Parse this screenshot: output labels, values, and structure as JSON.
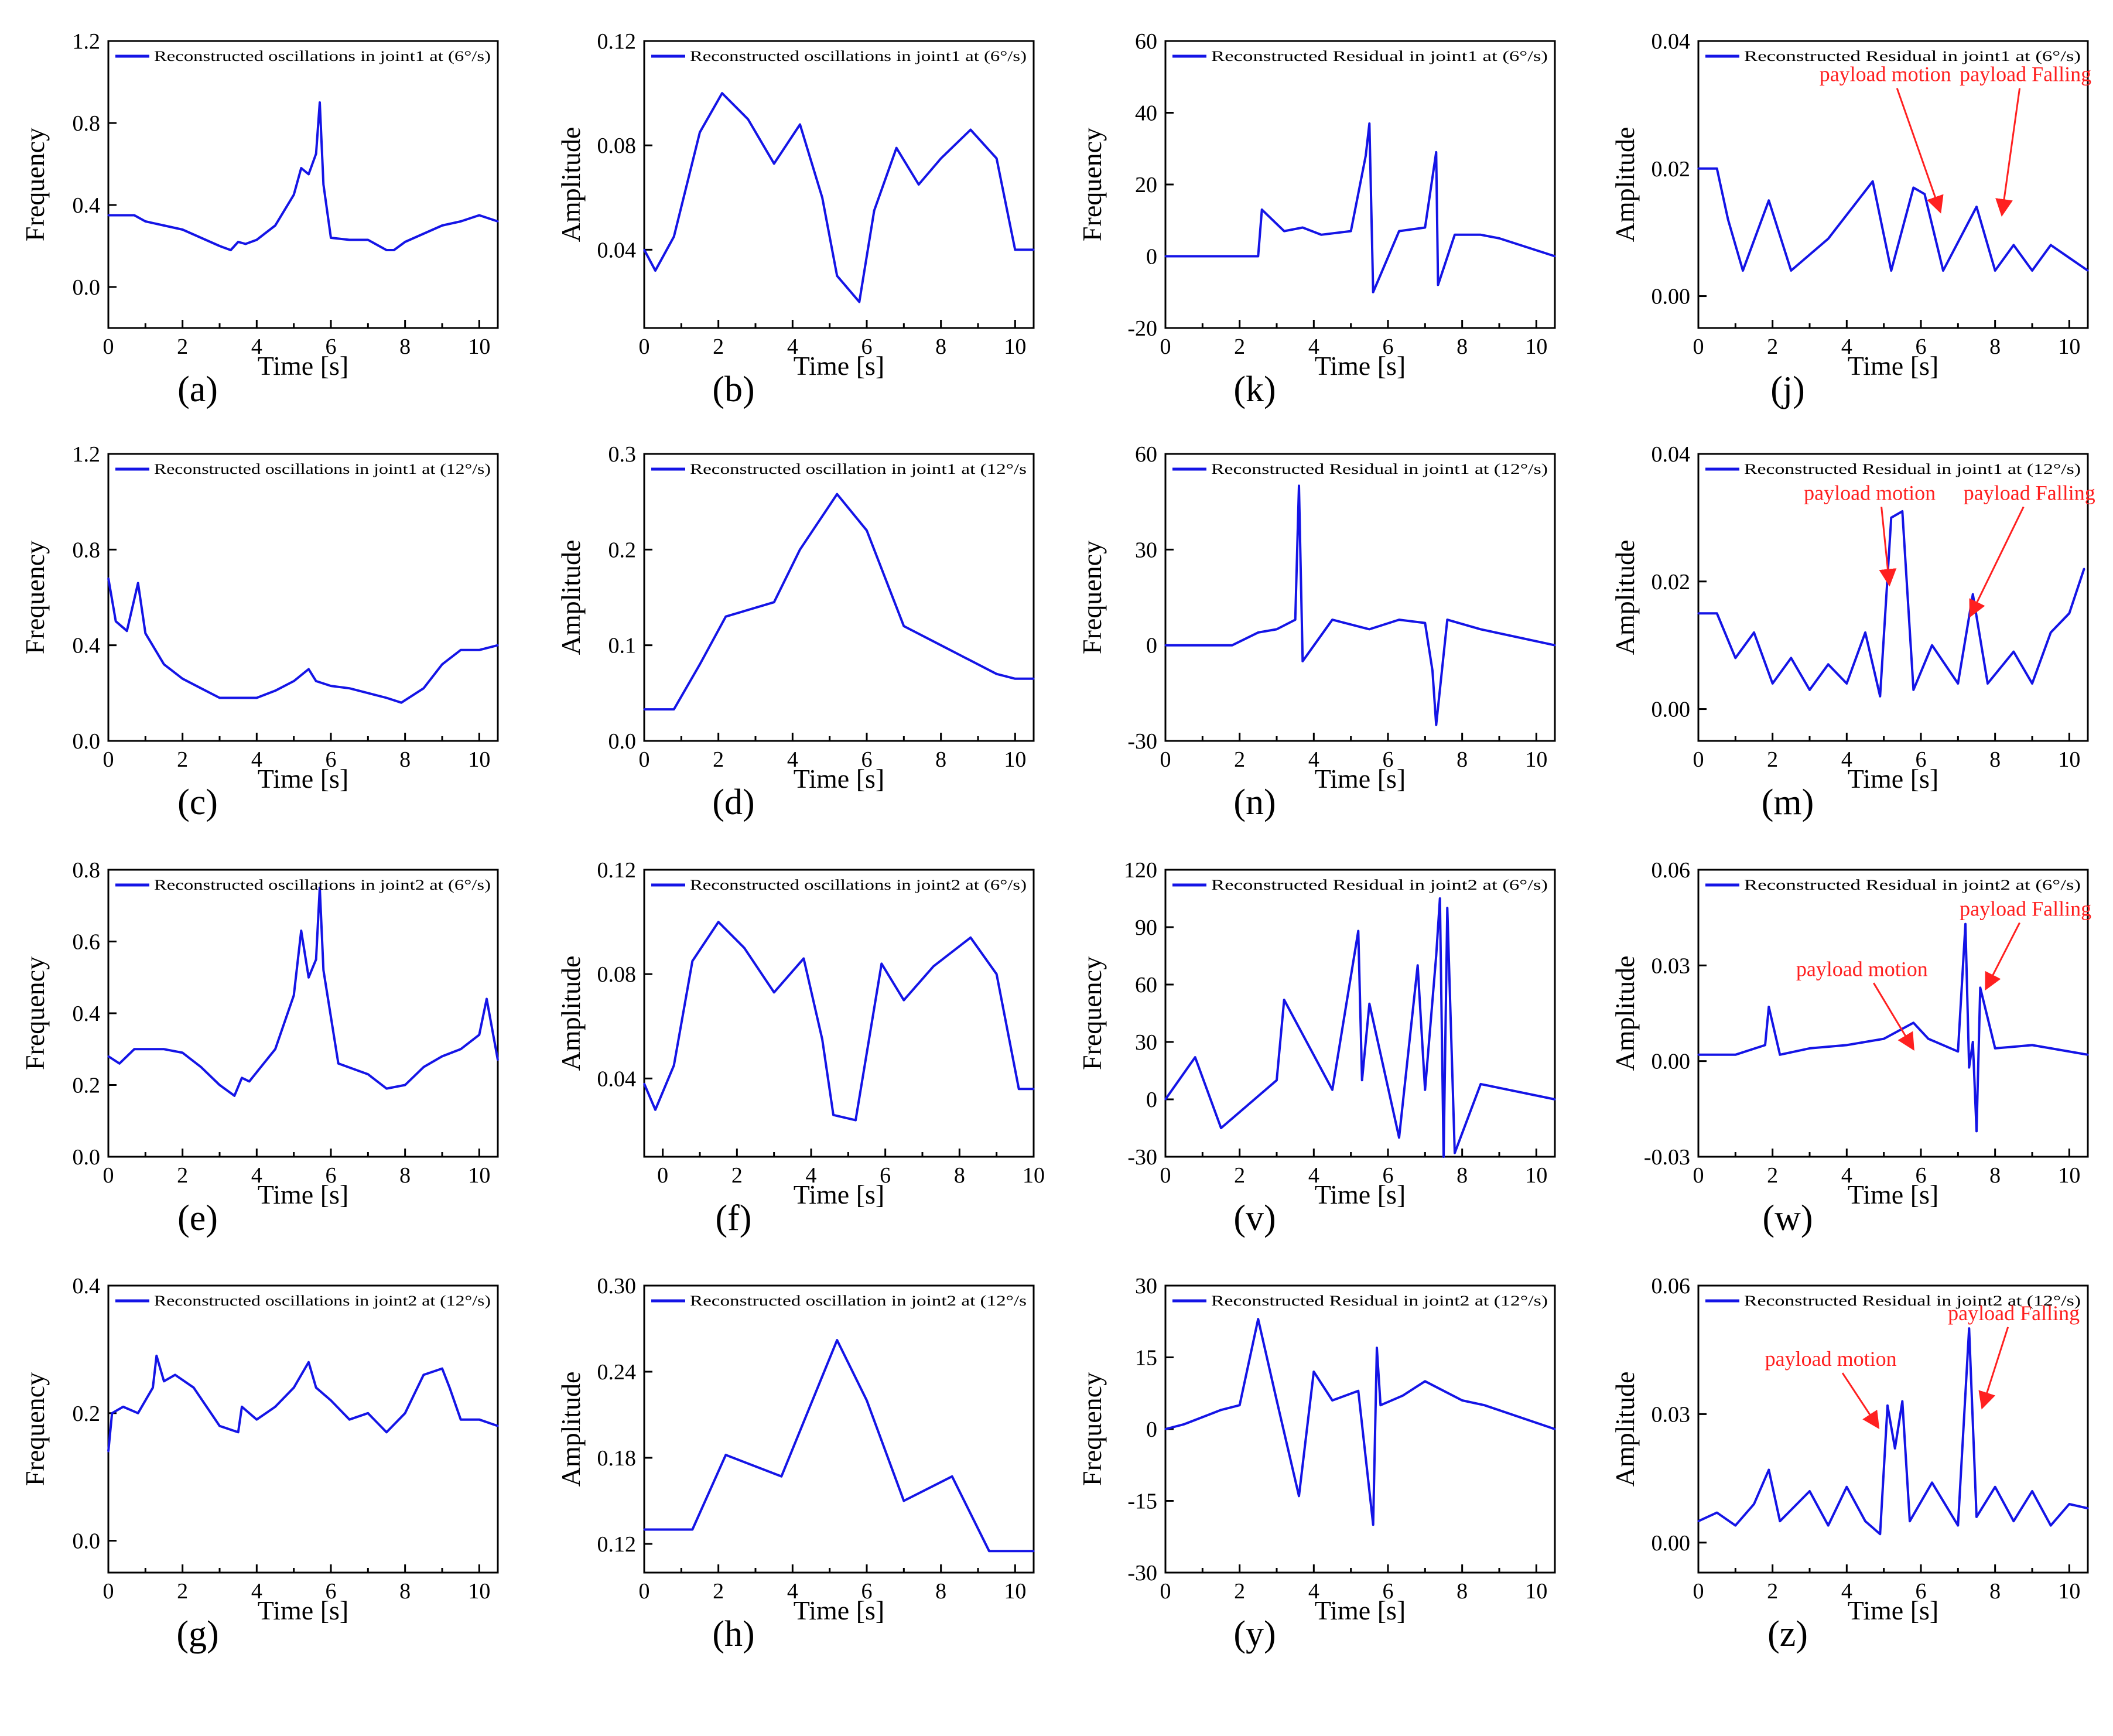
{
  "figure": {
    "series_color": "#1414e6",
    "annotation_color": "#ff2020"
  },
  "chart_data": [
    {
      "panel": "(a)",
      "type": "line",
      "title": "",
      "legend": "Reconstructed oscillations in joint1 at  (6°/s)",
      "xlabel": "Time [s]",
      "ylabel": "Frequency",
      "xlim": [
        0,
        10.5
      ],
      "ylim": [
        -0.2,
        1.2
      ],
      "xticks": [
        "0",
        "2",
        "4",
        "6",
        "8",
        "10"
      ],
      "yticks": [
        "0.0",
        "0.4",
        "0.8",
        "1.2"
      ],
      "x": [
        0,
        0.3,
        0.7,
        1,
        1.5,
        2,
        2.5,
        3,
        3.3,
        3.5,
        3.7,
        4,
        4.5,
        5,
        5.2,
        5.4,
        5.6,
        5.7,
        5.8,
        6,
        6.5,
        7,
        7.3,
        7.5,
        7.7,
        8,
        8.5,
        9,
        9.5,
        10,
        10.5
      ],
      "values": [
        0.35,
        0.35,
        0.35,
        0.32,
        0.3,
        0.28,
        0.24,
        0.2,
        0.18,
        0.22,
        0.21,
        0.23,
        0.3,
        0.45,
        0.58,
        0.55,
        0.65,
        0.9,
        0.5,
        0.24,
        0.23,
        0.23,
        0.2,
        0.18,
        0.18,
        0.22,
        0.26,
        0.3,
        0.32,
        0.35,
        0.32
      ],
      "annotations": []
    },
    {
      "panel": "(b)",
      "type": "line",
      "title": "",
      "legend": "Reconstructed oscillations in joint1 at  (6°/s)",
      "xlabel": "Time [s]",
      "ylabel": "Amplitude",
      "xlim": [
        0,
        10.5
      ],
      "ylim": [
        0.01,
        0.12
      ],
      "xticks": [
        "0",
        "2",
        "4",
        "6",
        "8",
        "10"
      ],
      "yticks": [
        "0.04",
        "0.08",
        "0.12"
      ],
      "x": [
        0,
        0.3,
        0.8,
        1.5,
        2.1,
        2.8,
        3.5,
        4.2,
        4.8,
        5.2,
        5.8,
        6.2,
        6.8,
        7.4,
        8,
        8.8,
        9.5,
        10,
        10.5
      ],
      "values": [
        0.04,
        0.032,
        0.045,
        0.085,
        0.1,
        0.09,
        0.073,
        0.088,
        0.06,
        0.03,
        0.02,
        0.055,
        0.079,
        0.065,
        0.075,
        0.086,
        0.075,
        0.04,
        0.04
      ],
      "annotations": []
    },
    {
      "panel": "(k)",
      "type": "line",
      "title": "",
      "legend": "Reconstructed Residual in joint1 at  (6°/s)",
      "xlabel": "Time [s]",
      "ylabel": "Frequency",
      "xlim": [
        0,
        10.5
      ],
      "ylim": [
        -20,
        60
      ],
      "xticks": [
        "0",
        "2",
        "4",
        "6",
        "8",
        "10"
      ],
      "yticks": [
        "-20",
        "0",
        "20",
        "40",
        "60"
      ],
      "x": [
        0,
        1.5,
        2.5,
        2.6,
        3.2,
        3.7,
        4.2,
        5,
        5.4,
        5.5,
        5.6,
        6.3,
        7,
        7.3,
        7.35,
        7.8,
        8.5,
        9,
        10.5
      ],
      "values": [
        0,
        0,
        0,
        13,
        7,
        8,
        6,
        7,
        28,
        37,
        -10,
        7,
        8,
        29,
        -8,
        6,
        6,
        5,
        0
      ],
      "annotations": []
    },
    {
      "panel": "(j)",
      "type": "line",
      "title": "",
      "legend": "Reconstructed Residual in joint1 at  (6°/s)",
      "xlabel": "Time [s]",
      "ylabel": "Amplitude",
      "xlim": [
        0,
        10.5
      ],
      "ylim": [
        -0.005,
        0.04
      ],
      "xticks": [
        "0",
        "2",
        "4",
        "6",
        "8",
        "10"
      ],
      "yticks": [
        "0.00",
        "0.02",
        "0.04"
      ],
      "x": [
        0,
        0.5,
        0.8,
        1.2,
        1.9,
        2.5,
        3.5,
        4.7,
        5.2,
        5.8,
        6.1,
        6.6,
        7.5,
        8,
        8.5,
        9,
        9.5,
        10,
        10.5
      ],
      "values": [
        0.02,
        0.02,
        0.012,
        0.004,
        0.015,
        0.004,
        0.009,
        0.018,
        0.004,
        0.017,
        0.016,
        0.004,
        0.014,
        0.004,
        0.008,
        0.004,
        0.008,
        0.006,
        0.004
      ],
      "annotations": [
        "payload motion",
        "payload Falling"
      ]
    },
    {
      "panel": "(c)",
      "type": "line",
      "title": "",
      "legend": "Reconstructed oscillations  in joint1 at  (12°/s)",
      "xlabel": "Time [s]",
      "ylabel": "Frequency",
      "xlim": [
        0,
        10.5
      ],
      "ylim": [
        0,
        1.2
      ],
      "xticks": [
        "0",
        "2",
        "4",
        "6",
        "8",
        "10"
      ],
      "yticks": [
        "0.0",
        "0.4",
        "0.8",
        "1.2"
      ],
      "x": [
        0,
        0.2,
        0.5,
        0.8,
        1,
        1.5,
        2,
        2.5,
        3,
        3.5,
        4,
        4.5,
        5,
        5.4,
        5.6,
        6,
        6.5,
        7,
        7.5,
        7.9,
        8.5,
        9,
        9.5,
        10,
        10.5
      ],
      "values": [
        0.68,
        0.5,
        0.46,
        0.66,
        0.45,
        0.32,
        0.26,
        0.22,
        0.18,
        0.18,
        0.18,
        0.21,
        0.25,
        0.3,
        0.25,
        0.23,
        0.22,
        0.2,
        0.18,
        0.16,
        0.22,
        0.32,
        0.38,
        0.38,
        0.4
      ],
      "annotations": []
    },
    {
      "panel": "(d)",
      "type": "line",
      "title": "",
      "legend": "Reconstructed oscillation  in joint1 at  (12°/s",
      "xlabel": "Time [s]",
      "ylabel": "Amplitude",
      "xlim": [
        0,
        10.5
      ],
      "ylim": [
        0,
        0.3
      ],
      "xticks": [
        "0",
        "2",
        "4",
        "6",
        "8",
        "10"
      ],
      "yticks": [
        "0.0",
        "0.1",
        "0.2",
        "0.3"
      ],
      "x": [
        0,
        0.8,
        1.5,
        2.2,
        3.5,
        4.2,
        5.2,
        6,
        7,
        8,
        8.5,
        9.5,
        10,
        10.5
      ],
      "values": [
        0.033,
        0.033,
        0.08,
        0.13,
        0.145,
        0.2,
        0.258,
        0.22,
        0.12,
        0.1,
        0.09,
        0.07,
        0.065,
        0.065
      ],
      "annotations": []
    },
    {
      "panel": "(n)",
      "type": "line",
      "title": "",
      "legend": "Reconstructed Residual  in joint1 at  (12°/s)",
      "xlabel": "Time [s]",
      "ylabel": "Frequency",
      "xlim": [
        0,
        10.5
      ],
      "ylim": [
        -30,
        60
      ],
      "xticks": [
        "0",
        "2",
        "4",
        "6",
        "8",
        "10"
      ],
      "yticks": [
        "-30",
        "0",
        "30",
        "60"
      ],
      "x": [
        0,
        1.8,
        2.5,
        3,
        3.5,
        3.6,
        3.7,
        4.5,
        5.5,
        6.3,
        7,
        7.2,
        7.3,
        7.6,
        8.5,
        10.5
      ],
      "values": [
        0,
        0,
        4,
        5,
        8,
        50,
        -5,
        8,
        5,
        8,
        7,
        -8,
        -25,
        8,
        5,
        0
      ],
      "annotations": []
    },
    {
      "panel": "(m)",
      "type": "line",
      "title": "",
      "legend": "Reconstructed Residual  in joint1 at  (12°/s)",
      "xlabel": "Time [s]",
      "ylabel": "Amplitude",
      "xlim": [
        0,
        10.5
      ],
      "ylim": [
        -0.005,
        0.04
      ],
      "xticks": [
        "0",
        "2",
        "4",
        "6",
        "8",
        "10"
      ],
      "yticks": [
        "0.00",
        "0.02",
        "0.04"
      ],
      "x": [
        0,
        0.5,
        1,
        1.5,
        2,
        2.5,
        3,
        3.5,
        4,
        4.5,
        4.9,
        5.2,
        5.5,
        5.8,
        6.3,
        7,
        7.4,
        7.8,
        8.5,
        9,
        9.5,
        10,
        10.4
      ],
      "values": [
        0.015,
        0.015,
        0.008,
        0.012,
        0.004,
        0.008,
        0.003,
        0.007,
        0.004,
        0.012,
        0.002,
        0.03,
        0.031,
        0.003,
        0.01,
        0.004,
        0.018,
        0.004,
        0.009,
        0.004,
        0.012,
        0.015,
        0.022
      ],
      "annotations": [
        "payload motion",
        "payload Falling"
      ]
    },
    {
      "panel": "(e)",
      "type": "line",
      "title": "",
      "legend": "Reconstructed oscillations in joint2 at  (6°/s)",
      "xlabel": "Time [s]",
      "ylabel": "Frequency",
      "xlim": [
        0,
        10.5
      ],
      "ylim": [
        0,
        0.8
      ],
      "xticks": [
        "0",
        "2",
        "4",
        "6",
        "8",
        "10"
      ],
      "yticks": [
        "0.0",
        "0.2",
        "0.4",
        "0.6",
        "0.8"
      ],
      "x": [
        0,
        0.3,
        0.7,
        1,
        1.5,
        2,
        2.5,
        3,
        3.4,
        3.6,
        3.8,
        4.5,
        5,
        5.2,
        5.4,
        5.6,
        5.7,
        5.8,
        6.2,
        7,
        7.5,
        8,
        8.5,
        9,
        9.5,
        10,
        10.2,
        10.5
      ],
      "values": [
        0.28,
        0.26,
        0.3,
        0.3,
        0.3,
        0.29,
        0.25,
        0.2,
        0.17,
        0.22,
        0.21,
        0.3,
        0.45,
        0.63,
        0.5,
        0.55,
        0.75,
        0.52,
        0.26,
        0.23,
        0.19,
        0.2,
        0.25,
        0.28,
        0.3,
        0.34,
        0.44,
        0.27
      ],
      "annotations": []
    },
    {
      "panel": "(f)",
      "type": "line",
      "title": "",
      "legend": "Reconstructed oscillations in joint2 at  (6°/s)",
      "xlabel": "Time [s]",
      "ylabel": "Amplitude",
      "xlim": [
        -0.5,
        10
      ],
      "ylim": [
        0.01,
        0.12
      ],
      "xticks": [
        "0",
        "2",
        "4",
        "6",
        "8",
        "10"
      ],
      "yticks": [
        "0.04",
        "0.08",
        "0.12"
      ],
      "x": [
        -0.5,
        -0.2,
        0.3,
        0.8,
        1.5,
        2.2,
        3,
        3.8,
        4.3,
        4.6,
        5.2,
        5.9,
        6.5,
        7.3,
        8.3,
        9,
        9.6,
        10
      ],
      "values": [
        0.038,
        0.028,
        0.045,
        0.085,
        0.1,
        0.09,
        0.073,
        0.086,
        0.055,
        0.026,
        0.024,
        0.084,
        0.07,
        0.083,
        0.094,
        0.08,
        0.036,
        0.036
      ],
      "annotations": []
    },
    {
      "panel": "(v)",
      "type": "line",
      "title": "",
      "legend": "Reconstructed Residual in joint2 at  (6°/s)",
      "xlabel": "Time [s]",
      "ylabel": "Frequency",
      "xlim": [
        0,
        10.5
      ],
      "ylim": [
        -30,
        120
      ],
      "xticks": [
        "0",
        "2",
        "4",
        "6",
        "8",
        "10"
      ],
      "yticks": [
        "-30",
        "0",
        "30",
        "60",
        "90",
        "120"
      ],
      "x": [
        0,
        0.8,
        1.5,
        3,
        3.2,
        4.5,
        5.2,
        5.3,
        5.5,
        6.3,
        6.8,
        7,
        7.3,
        7.4,
        7.5,
        7.6,
        7.8,
        8.5,
        9,
        10.5
      ],
      "values": [
        0,
        22,
        -15,
        10,
        52,
        5,
        88,
        10,
        50,
        -20,
        70,
        5,
        75,
        105,
        -30,
        100,
        -28,
        8,
        6,
        0
      ],
      "annotations": []
    },
    {
      "panel": "(w)",
      "type": "line",
      "title": "",
      "legend": "Reconstructed Residual in joint2 at  (6°/s)",
      "xlabel": "Time [s]",
      "ylabel": "Amplitude",
      "xlim": [
        0,
        10.5
      ],
      "ylim": [
        -0.03,
        0.06
      ],
      "xticks": [
        "0",
        "2",
        "4",
        "6",
        "8",
        "10"
      ],
      "yticks": [
        "-0.03",
        "0.00",
        "0.03",
        "0.06"
      ],
      "x": [
        0,
        1,
        1.8,
        1.9,
        2.2,
        3,
        4,
        5,
        5.8,
        6.2,
        7,
        7.2,
        7.3,
        7.4,
        7.5,
        7.6,
        8,
        9,
        10.5
      ],
      "values": [
        0.002,
        0.002,
        0.005,
        0.017,
        0.002,
        0.004,
        0.005,
        0.007,
        0.012,
        0.007,
        0.003,
        0.043,
        -0.002,
        0.006,
        -0.022,
        0.023,
        0.004,
        0.005,
        0.002
      ],
      "annotations": [
        "payload motion",
        "payload Falling"
      ]
    },
    {
      "panel": "(g)",
      "type": "line",
      "title": "",
      "legend": "Reconstructed oscillations in joint2 at  (12°/s)",
      "xlabel": "Time [s]",
      "ylabel": "Frequency",
      "xlim": [
        0,
        10.5
      ],
      "ylim": [
        -0.05,
        0.4
      ],
      "xticks": [
        "0",
        "2",
        "4",
        "6",
        "8",
        "10"
      ],
      "yticks": [
        "0.0",
        "0.2",
        "0.4"
      ],
      "x": [
        0,
        0.1,
        0.4,
        0.8,
        1.2,
        1.3,
        1.5,
        1.8,
        2.3,
        3,
        3.5,
        3.6,
        4,
        4.5,
        5,
        5.4,
        5.6,
        6,
        6.5,
        7,
        7.5,
        8,
        8.5,
        9,
        9.2,
        9.5,
        10,
        10.5
      ],
      "values": [
        0.14,
        0.2,
        0.21,
        0.2,
        0.24,
        0.29,
        0.25,
        0.26,
        0.24,
        0.18,
        0.17,
        0.21,
        0.19,
        0.21,
        0.24,
        0.28,
        0.24,
        0.22,
        0.19,
        0.2,
        0.17,
        0.2,
        0.26,
        0.27,
        0.24,
        0.19,
        0.19,
        0.18
      ],
      "annotations": []
    },
    {
      "panel": "(h)",
      "type": "line",
      "title": "",
      "legend": "Reconstructed oscillation in joint2 at  (12°/s",
      "xlabel": "Time [s]",
      "ylabel": "Amplitude",
      "xlim": [
        0,
        10.5
      ],
      "ylim": [
        0.1,
        0.3
      ],
      "xticks": [
        "0",
        "2",
        "4",
        "6",
        "8",
        "10"
      ],
      "yticks": [
        "0.12",
        "0.18",
        "0.24",
        "0.30"
      ],
      "x": [
        0,
        1.3,
        2.2,
        3.7,
        5.2,
        6,
        7,
        8.3,
        9.3,
        10.5
      ],
      "values": [
        0.13,
        0.13,
        0.182,
        0.167,
        0.262,
        0.22,
        0.15,
        0.167,
        0.115,
        0.115
      ],
      "annotations": []
    },
    {
      "panel": "(y)",
      "type": "line",
      "title": "",
      "legend": "Reconstructed Residual in joint2 at  (12°/s)",
      "xlabel": "Time [s]",
      "ylabel": "Frequency",
      "xlim": [
        0,
        10.5
      ],
      "ylim": [
        -30,
        30
      ],
      "xticks": [
        "0",
        "2",
        "4",
        "6",
        "8",
        "10"
      ],
      "yticks": [
        "-30",
        "-15",
        "0",
        "15",
        "30"
      ],
      "x": [
        0,
        0.5,
        1.5,
        2,
        2.5,
        3,
        3.6,
        4,
        4.5,
        5.2,
        5.6,
        5.7,
        5.8,
        6.4,
        7,
        7.5,
        8,
        8.6,
        10.5
      ],
      "values": [
        0,
        1,
        4,
        5,
        23,
        6,
        -14,
        12,
        6,
        8,
        -20,
        17,
        5,
        7,
        10,
        8,
        6,
        5,
        0
      ],
      "annotations": []
    },
    {
      "panel": "(z)",
      "type": "line",
      "title": "",
      "legend": "Reconstructed Residual in joint2 at  (12°/s)",
      "xlabel": "Time [s]",
      "ylabel": "Amplitude",
      "xlim": [
        0,
        10.5
      ],
      "ylim": [
        -0.007,
        0.06
      ],
      "xticks": [
        "0",
        "2",
        "4",
        "6",
        "8",
        "10"
      ],
      "yticks": [
        "0.00",
        "0.03",
        "0.06"
      ],
      "x": [
        0,
        0.5,
        1,
        1.5,
        1.9,
        2.2,
        3,
        3.5,
        4,
        4.5,
        4.9,
        5.1,
        5.3,
        5.5,
        5.7,
        6.3,
        7,
        7.3,
        7.5,
        8,
        8.5,
        9,
        9.5,
        10,
        10.5
      ],
      "values": [
        0.005,
        0.007,
        0.004,
        0.009,
        0.017,
        0.005,
        0.012,
        0.004,
        0.013,
        0.005,
        0.002,
        0.032,
        0.022,
        0.033,
        0.005,
        0.014,
        0.004,
        0.05,
        0.006,
        0.013,
        0.005,
        0.012,
        0.004,
        0.009,
        0.008
      ],
      "annotations": [
        "payload motion",
        "payload Falling"
      ]
    }
  ]
}
